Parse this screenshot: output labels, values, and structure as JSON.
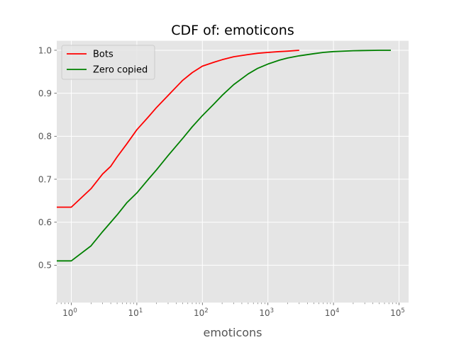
{
  "chart_data": {
    "type": "line",
    "title": "CDF of: emoticons",
    "xlabel": "emoticons",
    "ylabel": "",
    "xscale": "log",
    "xlim": [
      0.6,
      140000
    ],
    "ylim": [
      0.413,
      1.022
    ],
    "grid": true,
    "legend_position": "top-left",
    "x_ticks": [
      {
        "base": "10",
        "exp": "0",
        "value": 1
      },
      {
        "base": "10",
        "exp": "1",
        "value": 10
      },
      {
        "base": "10",
        "exp": "2",
        "value": 100
      },
      {
        "base": "10",
        "exp": "3",
        "value": 1000
      },
      {
        "base": "10",
        "exp": "4",
        "value": 10000
      },
      {
        "base": "10",
        "exp": "5",
        "value": 100000
      }
    ],
    "y_ticks": [
      {
        "label": "0.5",
        "value": 0.5
      },
      {
        "label": "0.6",
        "value": 0.6
      },
      {
        "label": "0.7",
        "value": 0.7
      },
      {
        "label": "0.8",
        "value": 0.8
      },
      {
        "label": "0.9",
        "value": 0.9
      },
      {
        "label": "1.0",
        "value": 1.0
      }
    ],
    "series": [
      {
        "name": "Bots",
        "color": "#ff0000",
        "x": [
          0.6,
          1,
          2,
          3,
          4,
          5,
          7,
          10,
          15,
          20,
          30,
          50,
          70,
          100,
          150,
          200,
          300,
          500,
          700,
          1000,
          1500,
          2000,
          3000
        ],
        "y": [
          0.635,
          0.635,
          0.678,
          0.712,
          0.73,
          0.752,
          0.782,
          0.815,
          0.845,
          0.867,
          0.895,
          0.93,
          0.948,
          0.963,
          0.972,
          0.978,
          0.985,
          0.99,
          0.993,
          0.995,
          0.997,
          0.998,
          1.0
        ]
      },
      {
        "name": "Zero copied",
        "color": "#008000",
        "x": [
          0.6,
          1,
          2,
          3,
          5,
          7,
          10,
          15,
          20,
          30,
          50,
          70,
          100,
          150,
          200,
          300,
          500,
          700,
          1000,
          1500,
          2000,
          3000,
          5000,
          7000,
          10000,
          20000,
          50000,
          75000
        ],
        "y": [
          0.51,
          0.51,
          0.545,
          0.578,
          0.617,
          0.645,
          0.668,
          0.7,
          0.722,
          0.755,
          0.795,
          0.822,
          0.848,
          0.875,
          0.895,
          0.92,
          0.945,
          0.958,
          0.968,
          0.977,
          0.982,
          0.987,
          0.992,
          0.995,
          0.997,
          0.999,
          1.0,
          1.0
        ]
      }
    ]
  }
}
